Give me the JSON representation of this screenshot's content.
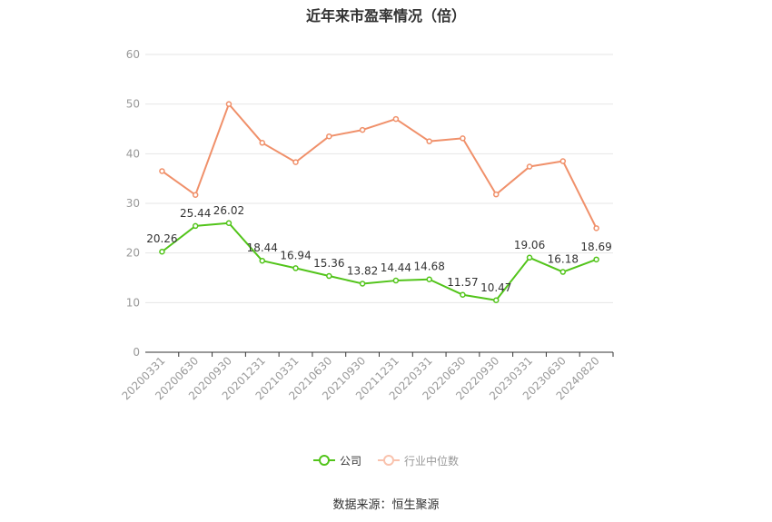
{
  "title": "近年来市盈率情况（倍）",
  "source": "数据来源：恒生聚源",
  "chart_data": {
    "type": "line",
    "title": "近年来市盈率情况（倍）",
    "xlabel": "",
    "ylabel": "",
    "ylim": [
      0,
      60
    ],
    "yticks": [
      0,
      10,
      20,
      30,
      40,
      50,
      60
    ],
    "grid": true,
    "legend_position": "bottom",
    "categories": [
      "20200331",
      "20200630",
      "20200930",
      "20201231",
      "20210331",
      "20210630",
      "20210930",
      "20211231",
      "20220331",
      "20220630",
      "20220930",
      "20230331",
      "20230630",
      "20240820"
    ],
    "series": [
      {
        "name": "公司",
        "color": "#52c41a",
        "values": [
          20.26,
          25.44,
          26.02,
          18.44,
          16.94,
          15.36,
          13.82,
          14.44,
          14.68,
          11.57,
          10.47,
          19.06,
          16.18,
          18.69
        ],
        "labels": [
          "20.26",
          "25.44",
          "26.02",
          "18.44",
          "16.94",
          "15.36",
          "13.82",
          "14.44",
          "14.68",
          "11.57",
          "10.47",
          "19.06",
          "16.18",
          "18.69"
        ]
      },
      {
        "name": "行业中位数",
        "color": "#f0906a",
        "values": [
          36.5,
          31.7,
          50.0,
          42.2,
          38.3,
          43.5,
          44.8,
          47.0,
          42.5,
          43.1,
          31.8,
          37.4,
          38.5,
          25.0
        ]
      }
    ]
  }
}
